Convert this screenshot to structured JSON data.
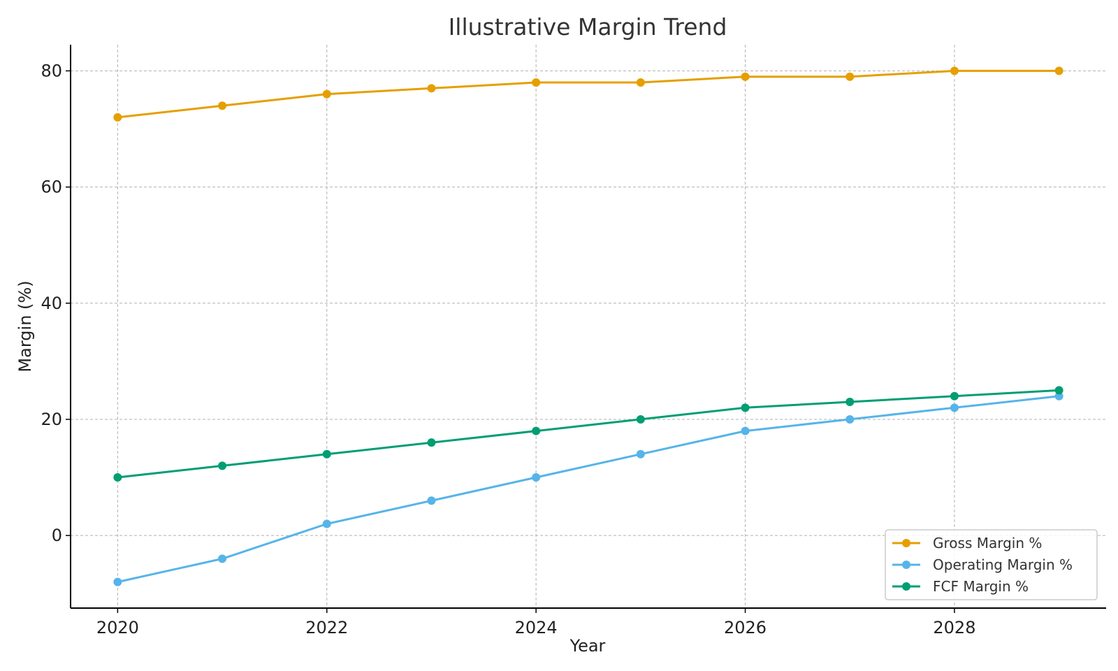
{
  "chart_data": {
    "type": "line",
    "title": "Illustrative Margin Trend",
    "xlabel": "Year",
    "ylabel": "Margin (%)",
    "x": [
      2020,
      2021,
      2022,
      2023,
      2024,
      2025,
      2026,
      2027,
      2028,
      2029
    ],
    "xticks": [
      2020,
      2022,
      2024,
      2026,
      2028
    ],
    "yticks": [
      0,
      20,
      40,
      60,
      80
    ],
    "xlim": [
      2019.55,
      2029.45
    ],
    "ylim": [
      -12.5,
      84.5
    ],
    "grid": true,
    "legend_position": "lower-right",
    "series": [
      {
        "name": "Gross Margin %",
        "color": "#E69F00",
        "values": [
          72,
          74,
          76,
          77,
          78,
          78,
          79,
          79,
          80,
          80
        ]
      },
      {
        "name": "Operating Margin %",
        "color": "#56B4E9",
        "values": [
          -8,
          -4,
          2,
          6,
          10,
          14,
          18,
          20,
          22,
          24
        ]
      },
      {
        "name": "FCF Margin %",
        "color": "#009E73",
        "values": [
          10,
          12,
          14,
          16,
          18,
          20,
          22,
          23,
          24,
          25
        ]
      }
    ]
  }
}
